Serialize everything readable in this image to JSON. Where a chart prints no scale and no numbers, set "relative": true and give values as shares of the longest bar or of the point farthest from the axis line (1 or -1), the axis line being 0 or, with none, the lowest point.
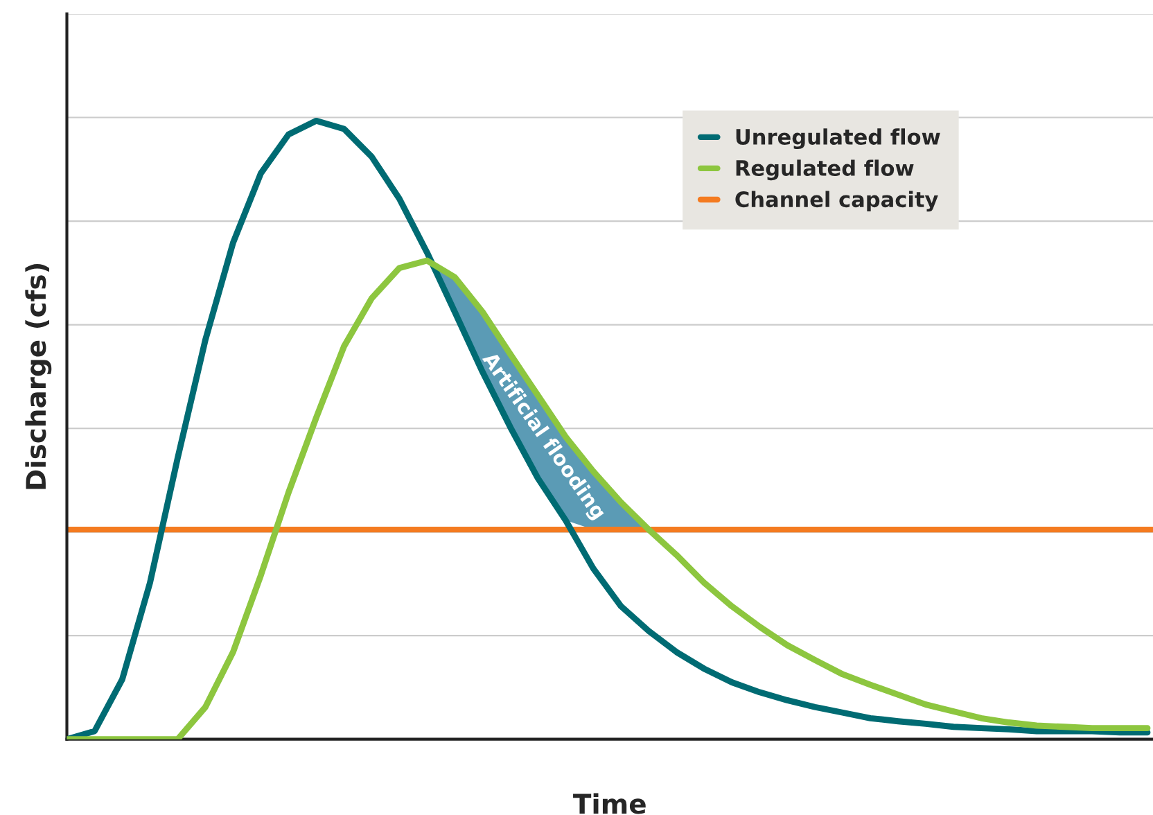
{
  "chart_data": {
    "type": "line",
    "relative": true,
    "xlabel": "Time",
    "ylabel": "Discharge (cfs)",
    "categories": [
      null,
      null,
      null,
      null,
      null,
      null,
      null,
      null,
      null,
      null,
      null,
      null,
      null,
      null,
      null,
      null,
      null,
      null,
      null,
      null,
      null,
      null,
      null,
      null,
      null,
      null,
      null,
      null,
      null,
      null,
      null,
      null,
      null,
      null,
      null,
      null,
      null,
      null,
      null,
      null
    ],
    "series": [
      {
        "name": "Unregulated flow",
        "color": "#006b73",
        "values": [
          0,
          0.013,
          0.097,
          0.253,
          0.455,
          0.646,
          0.803,
          0.915,
          0.978,
          1.0,
          0.987,
          0.942,
          0.874,
          0.787,
          0.691,
          0.594,
          0.505,
          0.422,
          0.354,
          0.276,
          0.215,
          0.175,
          0.141,
          0.114,
          0.092,
          0.076,
          0.063,
          0.052,
          0.043,
          0.034,
          0.029,
          0.025,
          0.02,
          0.018,
          0.016,
          0.013,
          0.013,
          0.013,
          0.011,
          0.011
        ]
      },
      {
        "name": "Regulated flow",
        "color": "#8dc63f",
        "values": [
          0,
          0,
          0,
          0,
          0,
          0.052,
          0.141,
          0.265,
          0.399,
          0.52,
          0.635,
          0.713,
          0.762,
          0.774,
          0.747,
          0.691,
          0.623,
          0.556,
          0.489,
          0.433,
          0.383,
          0.339,
          0.298,
          0.253,
          0.215,
          0.182,
          0.152,
          0.128,
          0.105,
          0.088,
          0.072,
          0.056,
          0.045,
          0.034,
          0.027,
          0.022,
          0.02,
          0.018,
          0.018,
          0.018
        ],
        "lower": [
          null,
          null,
          null,
          null,
          null,
          null,
          null,
          null,
          null,
          null,
          null,
          null,
          null,
          0.774,
          0.691,
          0.594,
          0.505,
          0.422,
          0.354,
          0.339,
          0.339,
          0.339,
          null,
          null,
          null,
          null,
          null,
          null,
          null,
          null,
          null,
          null,
          null,
          null,
          null,
          null,
          null,
          null,
          null,
          null
        ],
        "upper": [
          null,
          null,
          null,
          null,
          null,
          null,
          null,
          null,
          null,
          null,
          null,
          null,
          null,
          0.774,
          0.747,
          0.691,
          0.623,
          0.556,
          0.489,
          0.433,
          0.383,
          0.339,
          null,
          null,
          null,
          null,
          null,
          null,
          null,
          null,
          null,
          null,
          null,
          null,
          null,
          null,
          null,
          null,
          null,
          null
        ]
      }
    ],
    "ref_lines": [
      {
        "axis": "y",
        "value": 0.339,
        "label": "Channel capacity",
        "color": "#f47b20",
        "line_style": "solid"
      }
    ],
    "annotations": [
      "Artificial flooding"
    ],
    "grid": "y",
    "legend": "top right",
    "tick_labels": false,
    "line_style": "solid",
    "marker": "none"
  }
}
